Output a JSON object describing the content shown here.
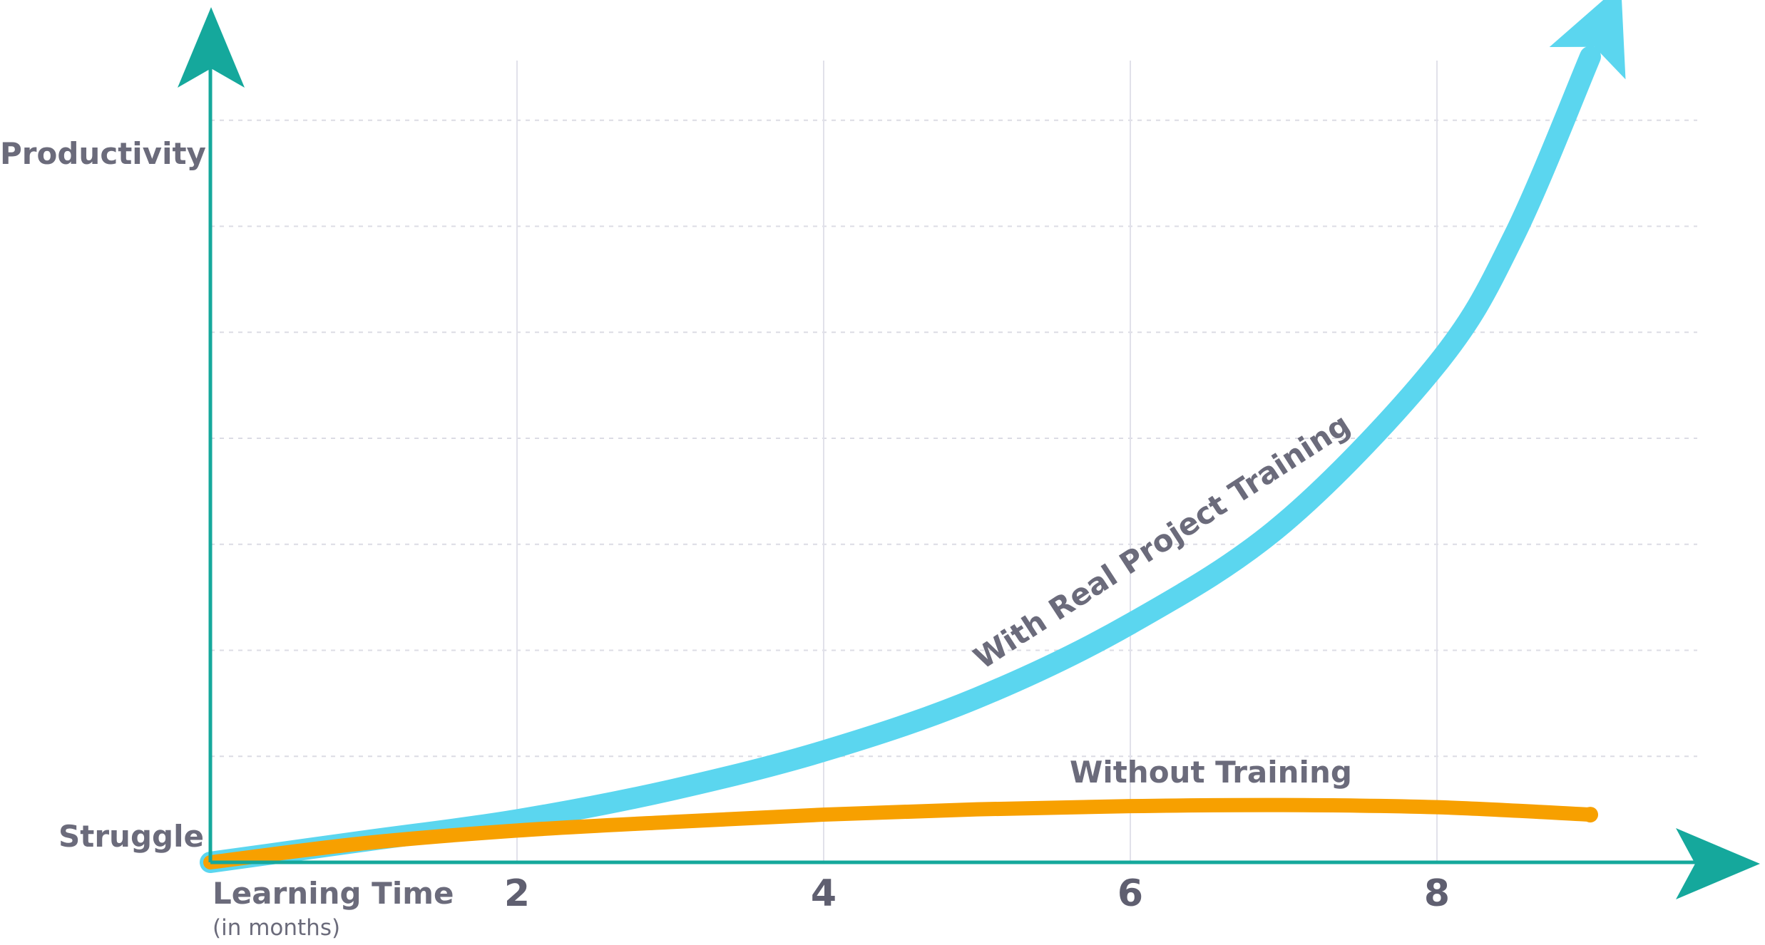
{
  "chart_data": {
    "type": "line",
    "title": "",
    "xlabel": "Learning Time",
    "xlabel_sub": "(in months)",
    "ylabel": "Productivity",
    "y_bottom_label": "Struggle",
    "x_ticks": [
      2,
      4,
      6,
      8
    ],
    "xlim": [
      0,
      9.7
    ],
    "ylim": [
      0,
      8
    ],
    "grid": true,
    "series": [
      {
        "name": "With Real Project Training",
        "color": "#5bd6ef",
        "x": [
          0,
          1,
          2,
          3,
          4,
          5,
          6,
          7,
          8,
          8.5,
          9
        ],
        "y": [
          0,
          0.2,
          0.4,
          0.68,
          1.05,
          1.55,
          2.25,
          3.2,
          4.7,
          5.9,
          7.6
        ]
      },
      {
        "name": "Without Training",
        "color": "#f7a000",
        "x": [
          0,
          1,
          2,
          3,
          4,
          5,
          6,
          7,
          8,
          9
        ],
        "y": [
          0,
          0.18,
          0.3,
          0.38,
          0.45,
          0.5,
          0.53,
          0.54,
          0.52,
          0.45
        ]
      }
    ],
    "axis_color": "#15a89c"
  }
}
